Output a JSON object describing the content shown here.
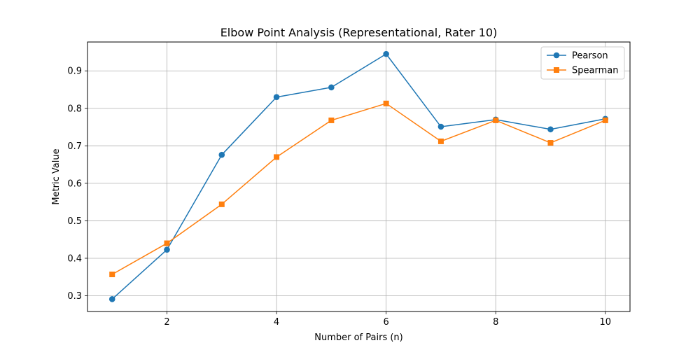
{
  "chart_data": {
    "type": "line",
    "title": "Elbow Point Analysis (Representational, Rater 10)",
    "xlabel": "Number of Pairs (n)",
    "ylabel": "Metric Value",
    "x": [
      1,
      2,
      3,
      4,
      5,
      6,
      7,
      8,
      9,
      10
    ],
    "xticks": [
      2,
      4,
      6,
      8,
      10
    ],
    "yticks": [
      0.3,
      0.4,
      0.5,
      0.6,
      0.7,
      0.8,
      0.9
    ],
    "xlim": [
      0.55,
      10.45
    ],
    "ylim": [
      0.258,
      0.977
    ],
    "grid": true,
    "legend_position": "upper right",
    "series": [
      {
        "name": "Pearson",
        "color": "#1f77b4",
        "marker": "circle",
        "values": [
          0.291,
          0.423,
          0.676,
          0.83,
          0.856,
          0.945,
          0.751,
          0.77,
          0.744,
          0.772
        ]
      },
      {
        "name": "Spearman",
        "color": "#ff7f0e",
        "marker": "square",
        "values": [
          0.357,
          0.44,
          0.544,
          0.67,
          0.768,
          0.813,
          0.712,
          0.768,
          0.708,
          0.768
        ]
      }
    ]
  }
}
